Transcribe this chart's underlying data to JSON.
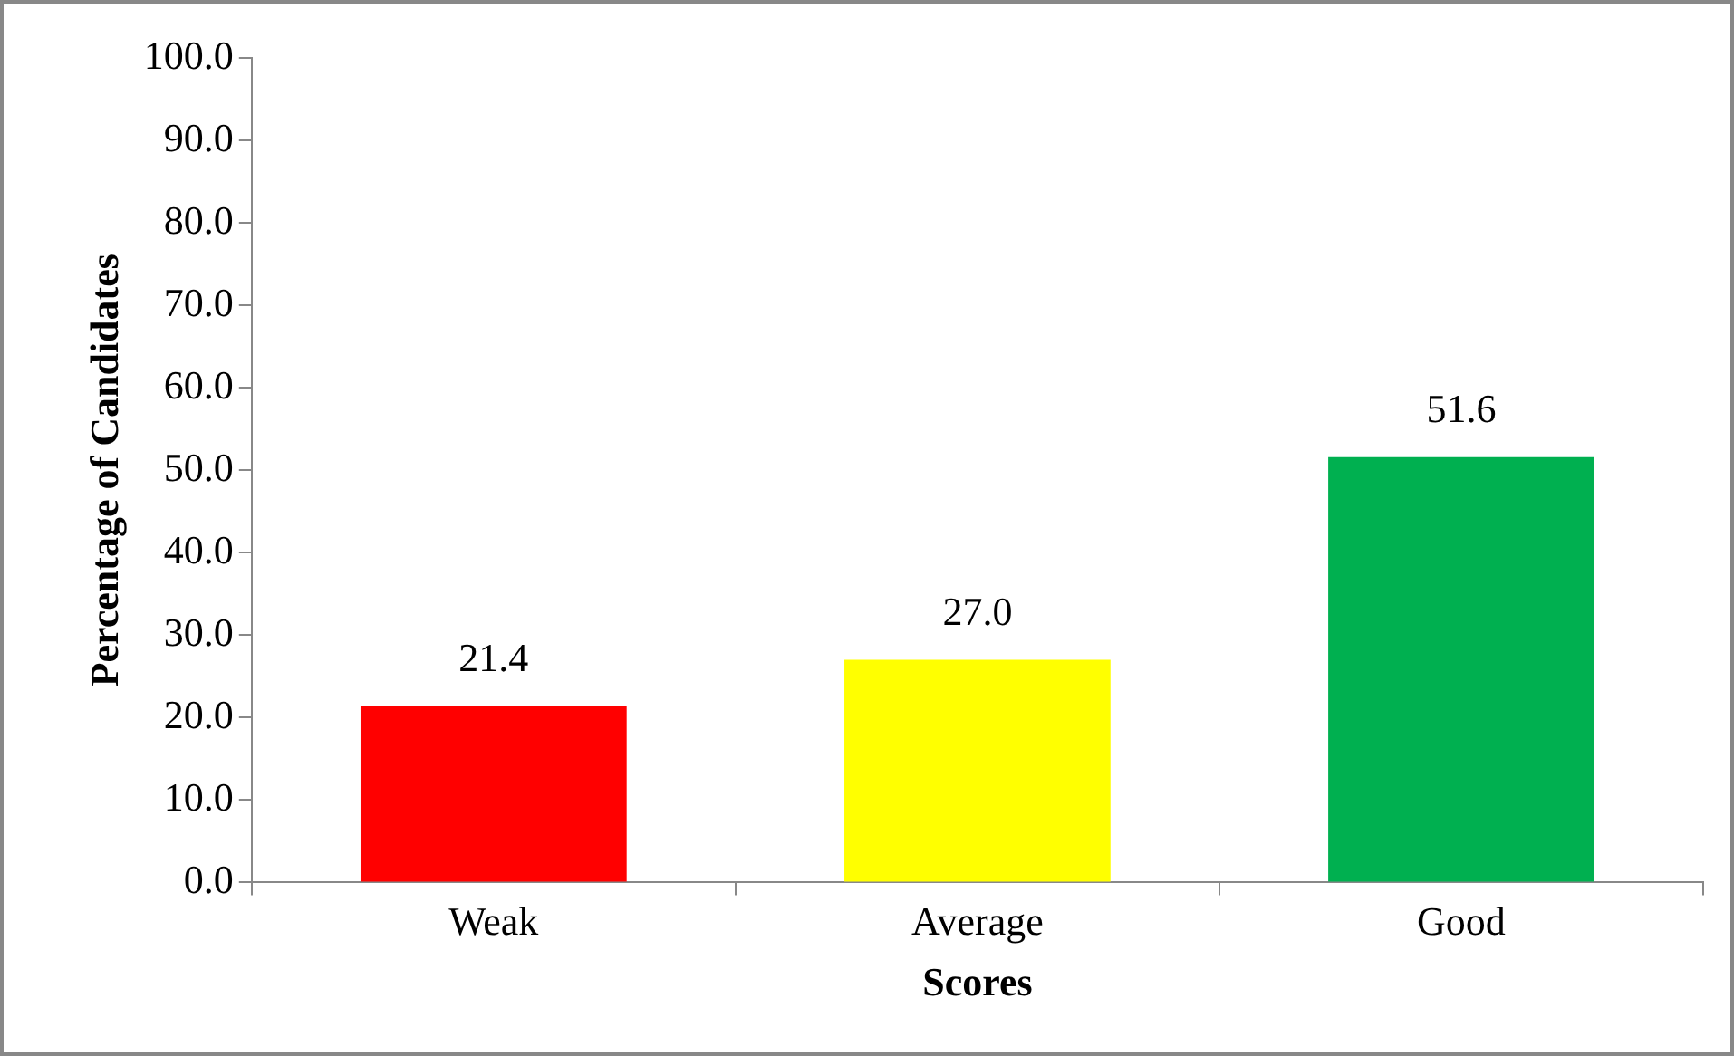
{
  "chart_data": {
    "type": "bar",
    "xlabel": "Scores",
    "ylabel": "Percentage of Candidates",
    "categories": [
      "Weak",
      "Average",
      "Good"
    ],
    "values": [
      21.4,
      27.0,
      51.6
    ],
    "colors": [
      "#ff0000",
      "#ffff00",
      "#00b050"
    ],
    "value_labels": [
      "21.4",
      "27.0",
      "51.6"
    ],
    "ylim": [
      0,
      100
    ],
    "yticks": [
      {
        "value": 0,
        "label": "0.0"
      },
      {
        "value": 10,
        "label": "10.0"
      },
      {
        "value": 20,
        "label": "20.0"
      },
      {
        "value": 30,
        "label": "30.0"
      },
      {
        "value": 40,
        "label": "40.0"
      },
      {
        "value": 50,
        "label": "50.0"
      },
      {
        "value": 60,
        "label": "60.0"
      },
      {
        "value": 70,
        "label": "70.0"
      },
      {
        "value": 80,
        "label": "80.0"
      },
      {
        "value": 90,
        "label": "90.0"
      },
      {
        "value": 100,
        "label": "100.0"
      }
    ],
    "grid": false,
    "legend": false
  }
}
